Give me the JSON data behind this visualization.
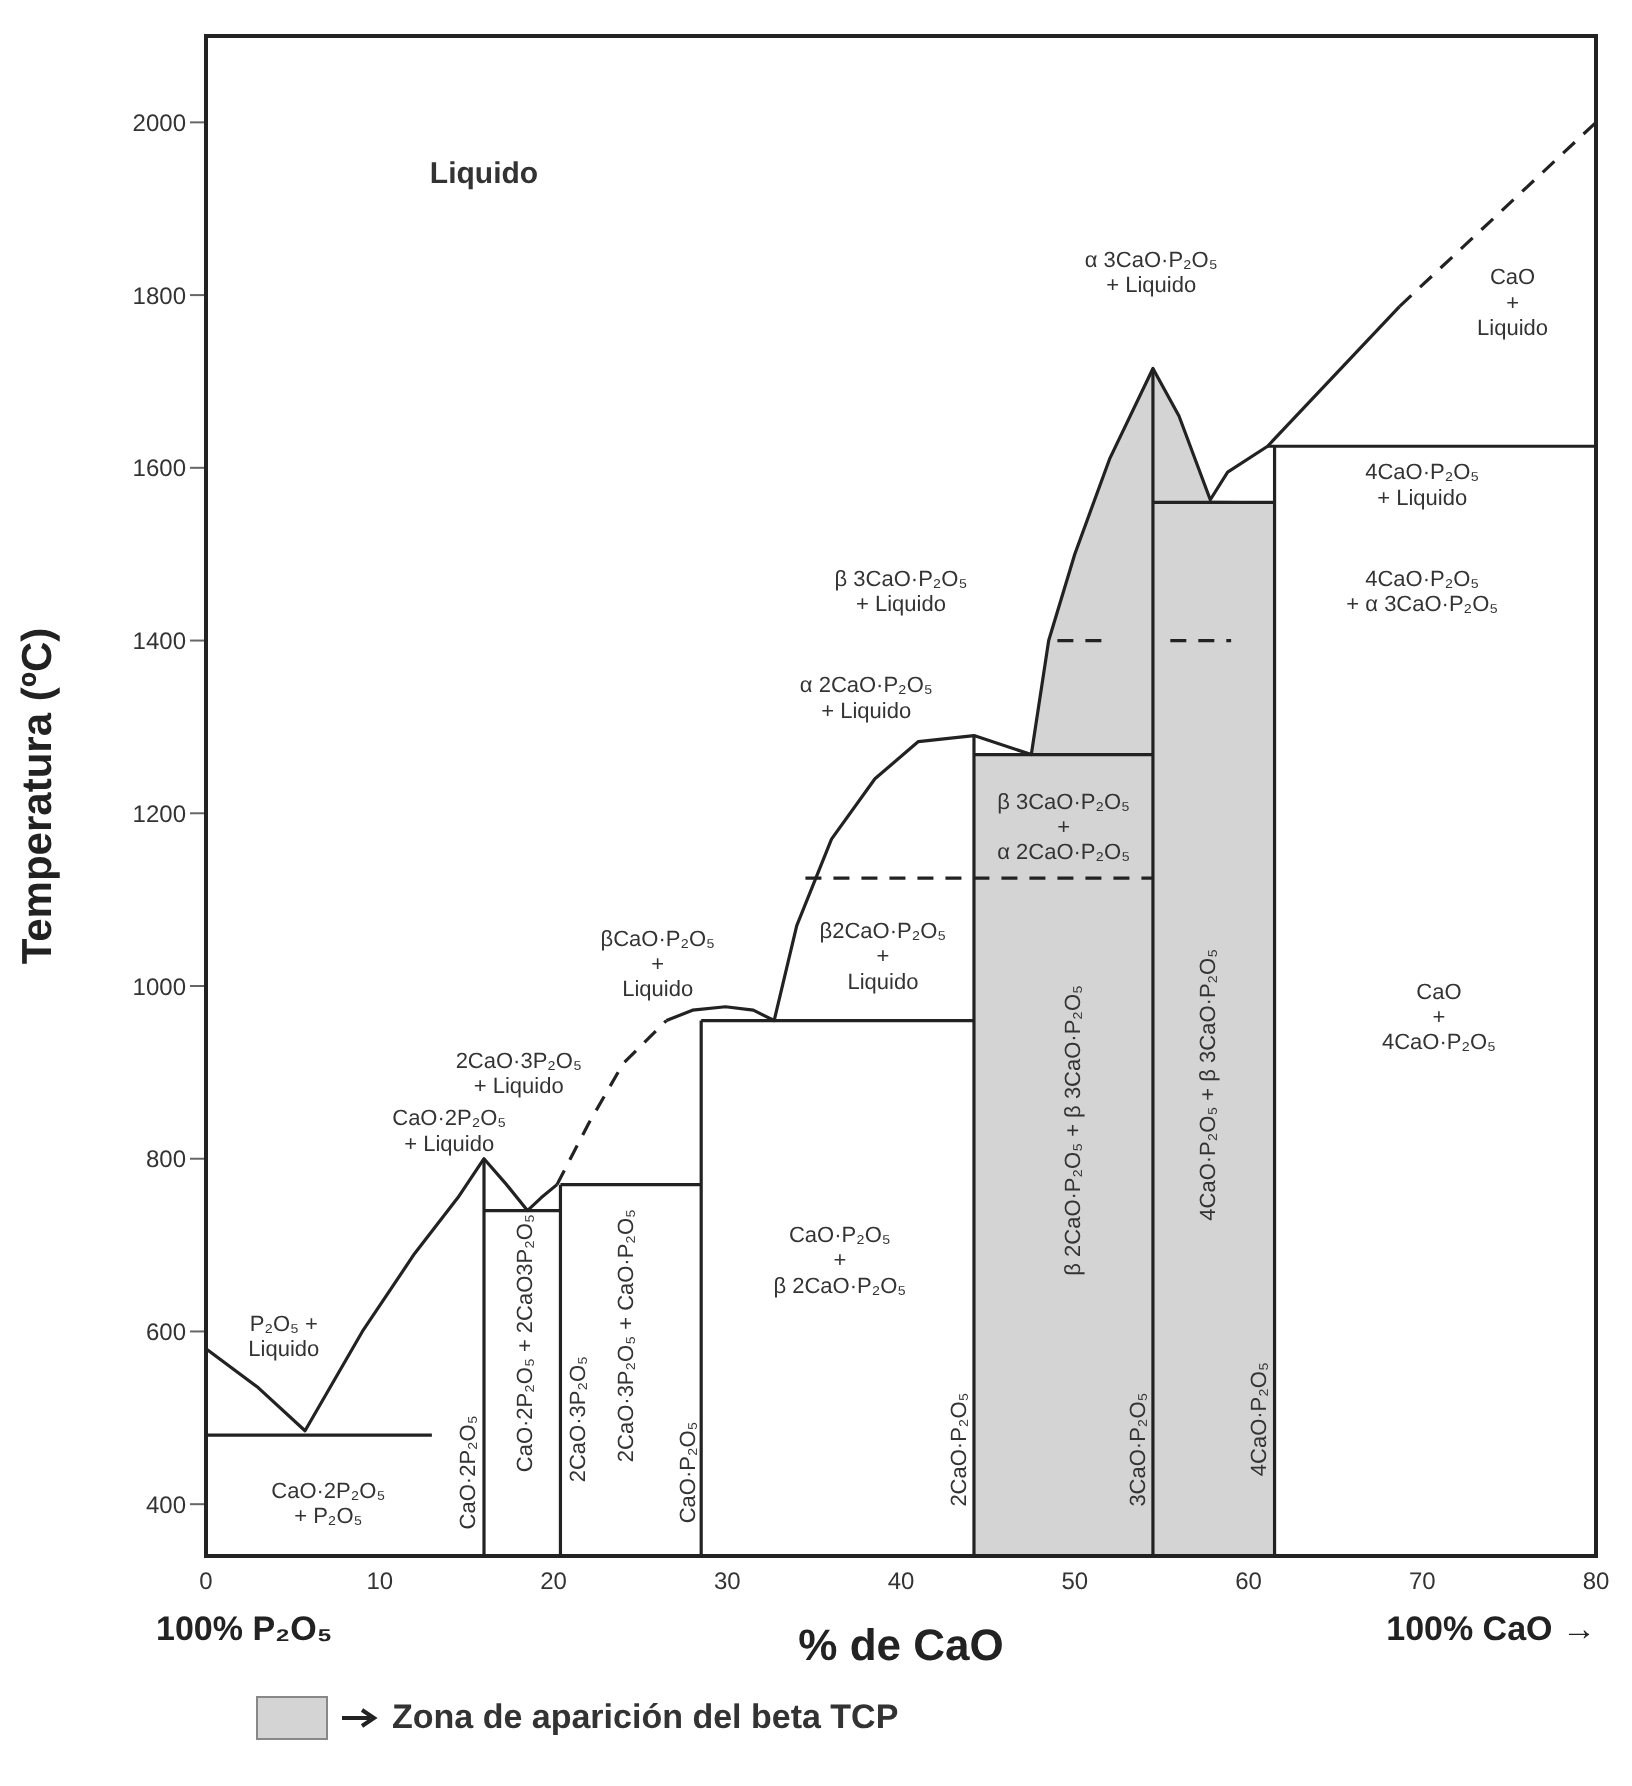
{
  "chart_data": {
    "type": "line",
    "xlabel": "% de CaO",
    "ylabel": "Temperatura (ºC)",
    "xlim": [
      0,
      80
    ],
    "ylim": [
      340,
      2100
    ],
    "xticks": [
      0,
      10,
      20,
      30,
      40,
      50,
      60,
      70,
      80
    ],
    "yticks": [
      400,
      600,
      800,
      1000,
      1200,
      1400,
      1600,
      1800,
      2000
    ],
    "legend": "bottom",
    "series": [
      {
        "color": "#222222",
        "x": [
          0,
          3,
          5.7,
          9,
          12,
          14.5,
          16,
          17.3,
          18.5,
          19.3,
          20.2
        ],
        "values": [
          580,
          535,
          485,
          600,
          690,
          755,
          800,
          770,
          740,
          755,
          770
        ]
      },
      {
        "color": "#222222",
        "line_style": "dashed",
        "x": [
          20.2,
          22,
          24,
          26.5
        ],
        "values": [
          770,
          840,
          910,
          960
        ]
      },
      {
        "color": "#222222",
        "x": [
          26.5,
          28,
          29.9,
          31.5,
          32.7,
          34,
          36,
          38.5,
          41,
          44.2,
          47.5,
          48.5,
          50,
          52,
          54.5,
          56,
          57.8,
          58.8,
          61.1,
          68.7
        ],
        "values": [
          960,
          972,
          976,
          972,
          960,
          1070,
          1170,
          1240,
          1283,
          1290,
          1268,
          1400,
          1500,
          1610,
          1715,
          1660,
          1563,
          1595,
          1625,
          1787
        ]
      },
      {
        "color": "#222222",
        "line_style": "dashed",
        "x": [
          68.7,
          80
        ],
        "values": [
          1787,
          2000
        ]
      },
      {
        "color": "#222222",
        "x": [
          0,
          13
        ],
        "values": [
          480,
          480
        ]
      },
      {
        "color": "#222222",
        "x": [
          16,
          20.4
        ],
        "values": [
          740,
          740
        ]
      },
      {
        "color": "#222222",
        "x": [
          20.4,
          28.5
        ],
        "values": [
          770,
          770
        ]
      },
      {
        "color": "#222222",
        "x": [
          28.5,
          44.2
        ],
        "values": [
          960,
          960
        ]
      },
      {
        "color": "#222222",
        "x": [
          44.2,
          54.5
        ],
        "values": [
          1268,
          1268
        ]
      },
      {
        "color": "#222222",
        "x": [
          54.5,
          61.5
        ],
        "values": [
          1560,
          1560
        ]
      },
      {
        "color": "#222222",
        "x": [
          61.1,
          80
        ],
        "values": [
          1625,
          1625
        ]
      },
      {
        "color": "#222222",
        "line_style": "dashed",
        "x": [
          34.5,
          54.5
        ],
        "values": [
          1125,
          1125
        ]
      },
      {
        "color": "#222222",
        "line_style": "dashed",
        "x": [
          49,
          52
        ],
        "values": [
          1400,
          1400
        ]
      },
      {
        "color": "#222222",
        "line_style": "dashed",
        "x": [
          55.5,
          59
        ],
        "values": [
          1400,
          1400
        ]
      },
      {
        "color": "#222222",
        "x": [
          16,
          16
        ],
        "values": [
          340,
          800
        ]
      },
      {
        "color": "#222222",
        "x": [
          20.4,
          20.4
        ],
        "values": [
          340,
          770
        ]
      },
      {
        "color": "#222222",
        "x": [
          28.5,
          28.5
        ],
        "values": [
          340,
          960
        ]
      },
      {
        "color": "#222222",
        "x": [
          44.2,
          44.2
        ],
        "values": [
          340,
          1290
        ]
      },
      {
        "color": "#222222",
        "x": [
          54.5,
          54.5
        ],
        "values": [
          340,
          1715
        ]
      },
      {
        "color": "#222222",
        "x": [
          61.5,
          61.5
        ],
        "values": [
          340,
          1625
        ]
      },
      {
        "type": "area",
        "name": "Zona de aparición del beta TCP",
        "color": "#d4d4d4",
        "x": [
          44.2,
          47.5,
          48.5,
          50,
          52,
          54.5,
          56,
          57.8,
          61.5
        ],
        "values": [
          1268,
          1268,
          1400,
          1500,
          1610,
          1715,
          1660,
          1563,
          1560
        ]
      }
    ],
    "annotations": [
      "Liquido",
      "α 3CaO·P₂O₅\n+ Liquido",
      "CaO\n+\nLiquido",
      "4CaO·P₂O₅\n+ Liquido",
      "4CaO·P₂O₅\n+ α 3CaO·P₂O₅",
      "β 3CaO·P₂O₅\n+ Liquido",
      "α 2CaO·P₂O₅\n+ Liquido",
      "β 3CaO·P₂O₅\n+\nα 2CaO·P₂O₅",
      "β2CaO·P₂O₅\n+\nLiquido",
      "βCaO·P₂O₅\n+\nLiquido",
      "2CaO·3P₂O₅\n+ Liquido",
      "CaO·2P₂O₅\n+ Liquido",
      "P₂O₅ +\nLiquido",
      "CaO·2P₂O₅\n+ P₂O₅",
      "CaO\n+\n4CaO·P₂O₅",
      "CaO·P₂O₅\n+\nβ 2CaO·P₂O₅",
      "CaO·2P₂O₅",
      "CaO·2P₂O₅ + 2CaO3P₂O₅",
      "2CaO·3P₂O₅",
      "2CaO·3P₂O₅ + CaO·P₂O₅",
      "CaO·P₂O₅",
      "2CaO·P₂O₅",
      "β 2CaO·P₂O₅ + β 3CaO·P₂O₅",
      "3CaO·P₂O₅",
      "4CaO·P₂O₅ + β 3CaO·P₂O₅",
      "4CaO·P₂O₅",
      "100% P₂O₅",
      "100% CaO →"
    ]
  }
}
